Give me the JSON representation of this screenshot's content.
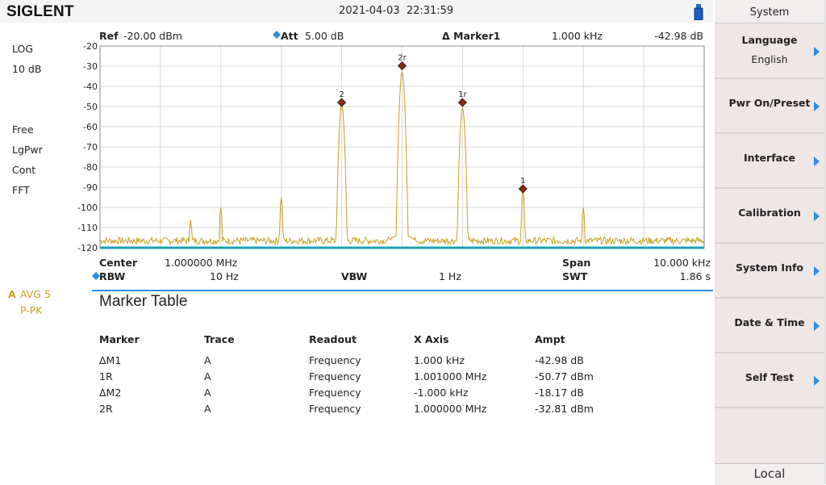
{
  "header": {
    "brand": "SIGLENT",
    "datetime": "2021-04-03  22:31:59"
  },
  "left_panel": {
    "scale": "LOG",
    "div": "10 dB",
    "sweep_mode": "Free",
    "avg_type": "LgPwr",
    "trigger": "Cont",
    "sweep_type": "FFT",
    "trace_letter": "A",
    "trace_avg": "AVG 5",
    "detector": "P-PK"
  },
  "top_params": {
    "ref_label": "Ref",
    "ref_value": "-20.00 dBm",
    "att_label": "Att",
    "att_value": "5.00 dB",
    "marker_label": "Δ Marker1",
    "marker_x": "1.000 kHz",
    "marker_y": "-42.98 dB"
  },
  "bottom_params": {
    "center_label": "Center",
    "center_value": "1.000000 MHz",
    "span_label": "Span",
    "span_value": "10.000 kHz",
    "rbw_label": "RBW",
    "rbw_value": "10 Hz",
    "vbw_label": "VBW",
    "vbw_value": "1 Hz",
    "swt_label": "SWT",
    "swt_value": "1.86 s"
  },
  "chart_data": {
    "type": "line",
    "y_ticks": [
      "-20",
      "-30",
      "-40",
      "-50",
      "-60",
      "-70",
      "-80",
      "-90",
      "-100",
      "-110",
      "-120"
    ],
    "ylim": [
      -120,
      -20
    ],
    "xlim_khz": [
      -5,
      5
    ],
    "noise_floor_dbm": -116.5,
    "x_khz": [
      -3.5,
      -3.0,
      -2.0,
      -1.0,
      0.0,
      1.0,
      2.0,
      3.0
    ],
    "peaks_dbm": [
      -106,
      -100,
      -95,
      -49,
      -32.8,
      -50.8,
      -90.5,
      -100
    ],
    "markers": [
      {
        "label": "2",
        "x_khz": -1.0,
        "y_dbm": -48.0
      },
      {
        "label": "2r",
        "x_khz": 0.0,
        "y_dbm": -29.8
      },
      {
        "label": "1r",
        "x_khz": 1.0,
        "y_dbm": -48.0
      },
      {
        "label": "1",
        "x_khz": 2.0,
        "y_dbm": -90.8
      }
    ],
    "trace_color": "#c8a020",
    "grid": true
  },
  "marker_table": {
    "title": "Marker Table",
    "headers": [
      "Marker",
      "Trace",
      "Readout",
      "X Axis",
      "Ampt"
    ],
    "rows": [
      [
        "ΔM1",
        "A",
        "Frequency",
        "1.000 kHz",
        "-42.98 dB"
      ],
      [
        "1R",
        "A",
        "Frequency",
        "1.001000 MHz",
        "-50.77 dBm"
      ],
      [
        "ΔM2",
        "A",
        "Frequency",
        "-1.000 kHz",
        "-18.17 dB"
      ],
      [
        "2R",
        "A",
        "Frequency",
        "1.000000 MHz",
        "-32.81 dBm"
      ]
    ]
  },
  "sidebar": {
    "title": "System",
    "items": [
      {
        "label": "Language",
        "sub": "English"
      },
      {
        "label": "Pwr On/Preset",
        "sub": ""
      },
      {
        "label": "Interface",
        "sub": ""
      },
      {
        "label": "Calibration",
        "sub": ""
      },
      {
        "label": "System Info",
        "sub": ""
      },
      {
        "label": "Date & Time",
        "sub": ""
      },
      {
        "label": "Self Test",
        "sub": ""
      }
    ],
    "footer": "Local"
  },
  "colors": {
    "accent": "#2a8ee0",
    "trace": "#c8a020",
    "marker": "#8a2a10"
  }
}
